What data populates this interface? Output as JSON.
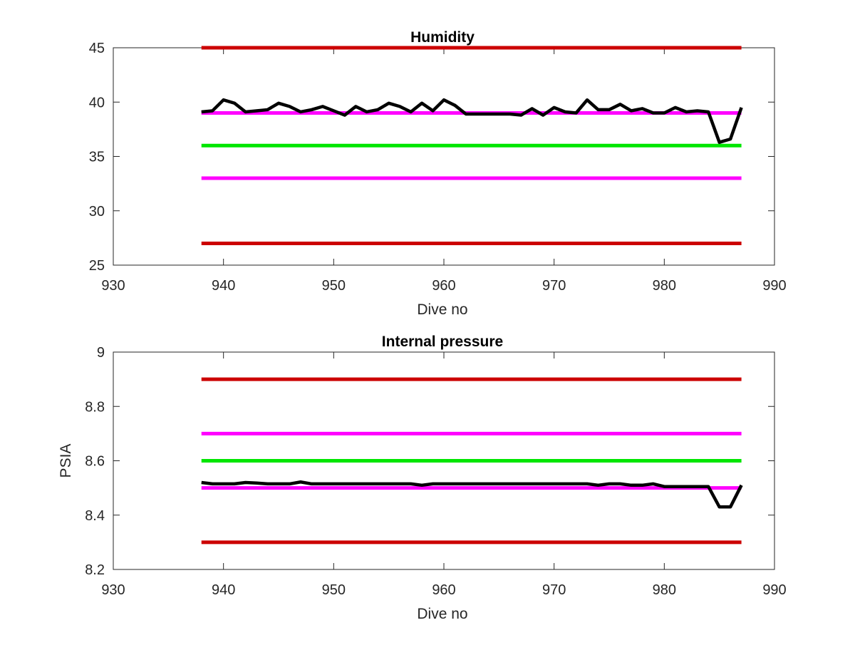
{
  "chart_data": [
    {
      "type": "line",
      "title": "Humidity",
      "xlabel": "Dive no",
      "ylabel": "",
      "xlim": [
        930,
        990
      ],
      "ylim": [
        25,
        45
      ],
      "xticks": [
        "930",
        "940",
        "950",
        "960",
        "970",
        "980",
        "990"
      ],
      "yticks": [
        "25",
        "30",
        "35",
        "40",
        "45"
      ],
      "grid": false,
      "thresholds": [
        {
          "y": 45,
          "x": [
            938,
            987
          ],
          "color": "#cc0000"
        },
        {
          "y": 39,
          "x": [
            938,
            987
          ],
          "color": "#ff00ff"
        },
        {
          "y": 36,
          "x": [
            938,
            987
          ],
          "color": "#00e600"
        },
        {
          "y": 33,
          "x": [
            938,
            987
          ],
          "color": "#ff00ff"
        },
        {
          "y": 27,
          "x": [
            938,
            987
          ],
          "color": "#cc0000"
        }
      ],
      "series": [
        {
          "color": "#000000",
          "x": [
            938,
            939,
            940,
            941,
            942,
            943,
            944,
            945,
            946,
            947,
            948,
            949,
            950,
            951,
            952,
            953,
            954,
            955,
            956,
            957,
            958,
            959,
            960,
            961,
            962,
            963,
            964,
            965,
            966,
            967,
            968,
            969,
            970,
            971,
            972,
            973,
            974,
            975,
            976,
            977,
            978,
            979,
            980,
            981,
            982,
            983,
            984,
            985,
            986,
            987
          ],
          "values": [
            39.1,
            39.2,
            40.2,
            39.9,
            39.1,
            39.2,
            39.3,
            39.9,
            39.6,
            39.1,
            39.3,
            39.6,
            39.2,
            38.8,
            39.6,
            39.1,
            39.3,
            39.9,
            39.6,
            39.1,
            39.9,
            39.2,
            40.2,
            39.7,
            38.9,
            38.9,
            38.9,
            38.9,
            38.9,
            38.8,
            39.4,
            38.8,
            39.5,
            39.1,
            39.0,
            40.2,
            39.3,
            39.3,
            39.8,
            39.2,
            39.4,
            39.0,
            39.0,
            39.5,
            39.1,
            39.2,
            39.1,
            36.3,
            36.6,
            39.5
          ]
        }
      ]
    },
    {
      "type": "line",
      "title": "Internal pressure",
      "xlabel": "Dive no",
      "ylabel": "PSIA",
      "xlim": [
        930,
        990
      ],
      "ylim": [
        8.2,
        9
      ],
      "xticks": [
        "930",
        "940",
        "950",
        "960",
        "970",
        "980",
        "990"
      ],
      "yticks": [
        "8.2",
        "8.4",
        "8.6",
        "8.8",
        "9"
      ],
      "grid": false,
      "thresholds": [
        {
          "y": 8.9,
          "x": [
            938,
            987
          ],
          "color": "#cc0000"
        },
        {
          "y": 8.7,
          "x": [
            938,
            987
          ],
          "color": "#ff00ff"
        },
        {
          "y": 8.6,
          "x": [
            938,
            987
          ],
          "color": "#00e600"
        },
        {
          "y": 8.5,
          "x": [
            938,
            987
          ],
          "color": "#ff00ff"
        },
        {
          "y": 8.3,
          "x": [
            938,
            987
          ],
          "color": "#cc0000"
        }
      ],
      "series": [
        {
          "color": "#000000",
          "x": [
            938,
            939,
            940,
            941,
            942,
            943,
            944,
            945,
            946,
            947,
            948,
            949,
            950,
            951,
            952,
            953,
            954,
            955,
            956,
            957,
            958,
            959,
            960,
            961,
            962,
            963,
            964,
            965,
            966,
            967,
            968,
            969,
            970,
            971,
            972,
            973,
            974,
            975,
            976,
            977,
            978,
            979,
            980,
            981,
            982,
            983,
            984,
            985,
            986,
            987
          ],
          "values": [
            8.52,
            8.515,
            8.515,
            8.515,
            8.52,
            8.518,
            8.515,
            8.515,
            8.515,
            8.522,
            8.515,
            8.515,
            8.515,
            8.515,
            8.515,
            8.515,
            8.515,
            8.515,
            8.515,
            8.515,
            8.51,
            8.515,
            8.515,
            8.515,
            8.515,
            8.515,
            8.515,
            8.515,
            8.515,
            8.515,
            8.515,
            8.515,
            8.515,
            8.515,
            8.515,
            8.515,
            8.51,
            8.515,
            8.515,
            8.51,
            8.51,
            8.515,
            8.505,
            8.505,
            8.505,
            8.505,
            8.505,
            8.43,
            8.43,
            8.51
          ]
        }
      ]
    }
  ]
}
